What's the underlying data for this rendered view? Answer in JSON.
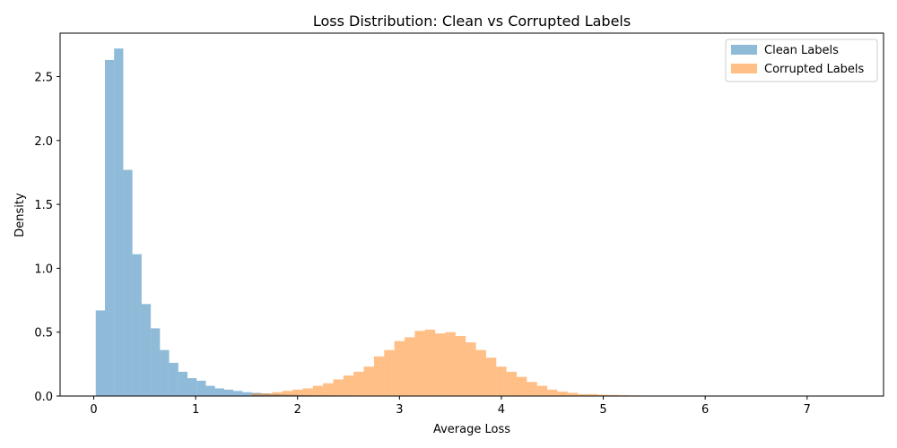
{
  "chart_data": {
    "type": "histogram",
    "title": "Loss Distribution: Clean vs Corrupted Labels",
    "xlabel": "Average Loss",
    "ylabel": "Density",
    "xlim": [
      -0.33,
      7.75
    ],
    "ylim": [
      0,
      2.84
    ],
    "xticks": [
      0,
      1,
      2,
      3,
      4,
      5,
      6,
      7
    ],
    "xtick_labels": [
      "0",
      "1",
      "2",
      "3",
      "4",
      "5",
      "6",
      "7"
    ],
    "yticks": [
      0.0,
      0.5,
      1.0,
      1.5,
      2.0,
      2.5
    ],
    "ytick_labels": [
      "0.0",
      "0.5",
      "1.0",
      "1.5",
      "2.0",
      "2.5"
    ],
    "legend_position": "top-right",
    "grid": false,
    "series": [
      {
        "name": "Clean Labels",
        "color": "#1f77b4",
        "opacity": 0.5,
        "bin_start": 0.02,
        "bin_width": 0.09,
        "values": [
          0.67,
          2.63,
          2.72,
          1.77,
          1.11,
          0.72,
          0.53,
          0.36,
          0.26,
          0.19,
          0.14,
          0.12,
          0.08,
          0.06,
          0.05,
          0.04,
          0.03,
          0.025,
          0.02,
          0.015,
          0.012,
          0.01,
          0.008,
          0.007,
          0.006,
          0.005,
          0.004,
          0.004,
          0.003,
          0.003,
          0.002,
          0.002,
          0.002,
          0.0015,
          0.0015,
          0.001,
          0.001,
          0.001,
          0.001,
          0.001,
          0.001,
          0.001,
          0.001,
          0.001,
          0.001,
          0.001,
          0.001,
          0.001,
          0.001,
          0.001,
          0.001,
          0.001,
          0.001,
          0.001,
          0.001,
          0.001,
          0.001,
          0.001,
          0.001,
          0.001,
          0.001,
          0.001,
          0.001,
          0.001,
          0.001,
          0.001,
          0.001,
          0.001,
          0.001,
          0.001,
          0.001,
          0.001,
          0.001,
          0.001,
          0.001,
          0.001,
          0.001,
          0.001,
          0.001,
          0.001,
          0.001,
          0.001
        ]
      },
      {
        "name": "Corrupted Labels",
        "color": "#ff7f0e",
        "opacity": 0.5,
        "bin_start": 1.55,
        "bin_width": 0.1,
        "values": [
          0.02,
          0.02,
          0.03,
          0.04,
          0.05,
          0.06,
          0.08,
          0.1,
          0.13,
          0.16,
          0.19,
          0.23,
          0.31,
          0.36,
          0.43,
          0.46,
          0.51,
          0.52,
          0.49,
          0.5,
          0.47,
          0.42,
          0.36,
          0.3,
          0.23,
          0.19,
          0.15,
          0.11,
          0.08,
          0.05,
          0.035,
          0.025,
          0.015,
          0.015,
          0.01,
          0.008,
          0.006,
          0.005,
          0.004,
          0.003,
          0.003,
          0.002,
          0.002,
          0.001,
          0.001,
          0.001,
          0.001,
          0.001,
          0.001,
          0.001,
          0.001,
          0.001,
          0.001,
          0.001,
          0.001,
          0.001,
          0.001,
          0.001
        ]
      }
    ]
  }
}
